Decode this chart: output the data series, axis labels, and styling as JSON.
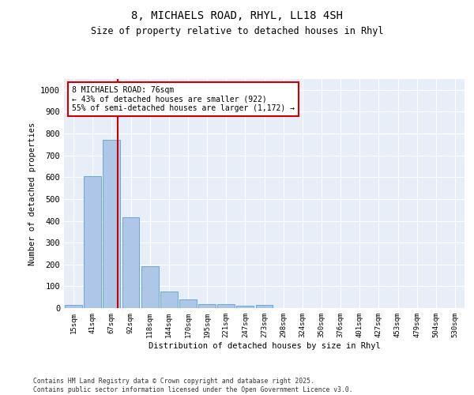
{
  "title": "8, MICHAELS ROAD, RHYL, LL18 4SH",
  "subtitle": "Size of property relative to detached houses in Rhyl",
  "xlabel": "Distribution of detached houses by size in Rhyl",
  "ylabel": "Number of detached properties",
  "bar_labels": [
    "15sqm",
    "41sqm",
    "67sqm",
    "92sqm",
    "118sqm",
    "144sqm",
    "170sqm",
    "195sqm",
    "221sqm",
    "247sqm",
    "273sqm",
    "298sqm",
    "324sqm",
    "350sqm",
    "376sqm",
    "401sqm",
    "427sqm",
    "453sqm",
    "479sqm",
    "504sqm",
    "530sqm"
  ],
  "bar_values": [
    15,
    605,
    770,
    415,
    193,
    77,
    40,
    18,
    18,
    12,
    14,
    0,
    0,
    0,
    0,
    0,
    0,
    0,
    0,
    0,
    0
  ],
  "bar_color": "#aec6e8",
  "bar_edge_color": "#5a9fd4",
  "annotation_line1": "8 MICHAELS ROAD: 76sqm",
  "annotation_line2": "← 43% of detached houses are smaller (922)",
  "annotation_line3": "55% of semi-detached houses are larger (1,172) →",
  "annotation_box_color": "#ffffff",
  "annotation_box_edge_color": "#cc0000",
  "red_line_color": "#cc0000",
  "ylim": [
    0,
    1050
  ],
  "yticks": [
    0,
    100,
    200,
    300,
    400,
    500,
    600,
    700,
    800,
    900,
    1000
  ],
  "background_color": "#e8eef8",
  "grid_color": "#ffffff",
  "footer_line1": "Contains HM Land Registry data © Crown copyright and database right 2025.",
  "footer_line2": "Contains public sector information licensed under the Open Government Licence v3.0."
}
